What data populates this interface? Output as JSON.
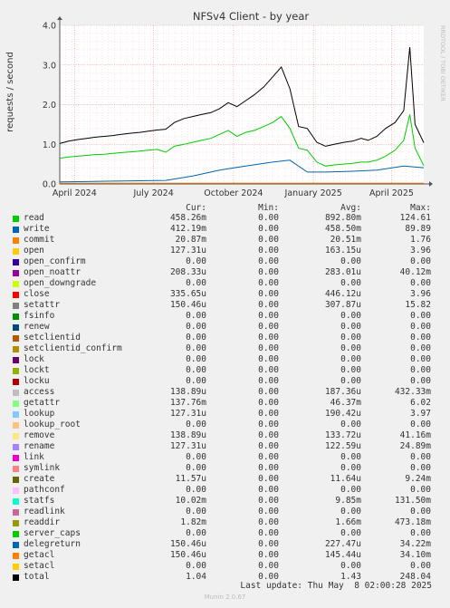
{
  "chart_data": {
    "type": "line",
    "title": "NFSv4 Client - by year",
    "ylabel": "requests / second",
    "xlabel": "",
    "ylim": [
      0,
      4.0
    ],
    "y_ticks": [
      "0.0",
      "1.0",
      "2.0",
      "3.0",
      "4.0"
    ],
    "x_ticks": [
      "April 2024",
      "July 2024",
      "October 2024",
      "January 2025",
      "April 2025"
    ],
    "x_tick_dates": [
      "2024-04-01",
      "2024-07-01",
      "2024-10-01",
      "2025-01-01",
      "2025-04-01"
    ],
    "x_range": [
      "2024-03-15",
      "2025-05-08"
    ],
    "grid": true,
    "watermark": "RRDTOOL / TOBI OETIKER",
    "series": [
      {
        "name": "total",
        "color": "#000000",
        "points": [
          [
            "2024-03-15",
            1.02
          ],
          [
            "2024-03-25",
            1.08
          ],
          [
            "2024-04-05",
            1.12
          ],
          [
            "2024-04-15",
            1.15
          ],
          [
            "2024-04-25",
            1.18
          ],
          [
            "2024-05-05",
            1.2
          ],
          [
            "2024-05-15",
            1.22
          ],
          [
            "2024-05-25",
            1.25
          ],
          [
            "2024-06-05",
            1.28
          ],
          [
            "2024-06-15",
            1.3
          ],
          [
            "2024-06-25",
            1.33
          ],
          [
            "2024-07-05",
            1.36
          ],
          [
            "2024-07-15",
            1.38
          ],
          [
            "2024-07-25",
            1.55
          ],
          [
            "2024-08-05",
            1.65
          ],
          [
            "2024-08-15",
            1.7
          ],
          [
            "2024-08-25",
            1.75
          ],
          [
            "2024-09-05",
            1.8
          ],
          [
            "2024-09-15",
            1.9
          ],
          [
            "2024-09-25",
            2.05
          ],
          [
            "2024-10-05",
            1.95
          ],
          [
            "2024-10-15",
            2.1
          ],
          [
            "2024-10-25",
            2.25
          ],
          [
            "2024-11-05",
            2.45
          ],
          [
            "2024-11-15",
            2.7
          ],
          [
            "2024-11-25",
            2.95
          ],
          [
            "2024-12-05",
            2.4
          ],
          [
            "2024-12-15",
            1.45
          ],
          [
            "2024-12-25",
            1.4
          ],
          [
            "2025-01-05",
            1.05
          ],
          [
            "2025-01-15",
            0.95
          ],
          [
            "2025-01-25",
            1.0
          ],
          [
            "2025-02-05",
            1.05
          ],
          [
            "2025-02-15",
            1.08
          ],
          [
            "2025-02-25",
            1.15
          ],
          [
            "2025-03-05",
            1.1
          ],
          [
            "2025-03-15",
            1.2
          ],
          [
            "2025-03-25",
            1.4
          ],
          [
            "2025-04-05",
            1.55
          ],
          [
            "2025-04-15",
            1.85
          ],
          [
            "2025-04-22",
            3.45
          ],
          [
            "2025-04-28",
            1.5
          ],
          [
            "2025-05-08",
            1.04
          ]
        ]
      },
      {
        "name": "read",
        "color": "#00cc00",
        "points": [
          [
            "2024-03-15",
            0.65
          ],
          [
            "2024-03-25",
            0.68
          ],
          [
            "2024-04-05",
            0.7
          ],
          [
            "2024-04-15",
            0.72
          ],
          [
            "2024-04-25",
            0.74
          ],
          [
            "2024-05-05",
            0.75
          ],
          [
            "2024-05-15",
            0.77
          ],
          [
            "2024-05-25",
            0.79
          ],
          [
            "2024-06-05",
            0.81
          ],
          [
            "2024-06-15",
            0.83
          ],
          [
            "2024-06-25",
            0.85
          ],
          [
            "2024-07-05",
            0.87
          ],
          [
            "2024-07-15",
            0.8
          ],
          [
            "2024-07-25",
            0.95
          ],
          [
            "2024-08-05",
            1.0
          ],
          [
            "2024-08-15",
            1.05
          ],
          [
            "2024-08-25",
            1.1
          ],
          [
            "2024-09-05",
            1.15
          ],
          [
            "2024-09-15",
            1.25
          ],
          [
            "2024-09-25",
            1.35
          ],
          [
            "2024-10-05",
            1.2
          ],
          [
            "2024-10-15",
            1.3
          ],
          [
            "2024-10-25",
            1.35
          ],
          [
            "2024-11-05",
            1.45
          ],
          [
            "2024-11-15",
            1.55
          ],
          [
            "2024-11-25",
            1.7
          ],
          [
            "2024-12-05",
            1.4
          ],
          [
            "2024-12-15",
            0.9
          ],
          [
            "2024-12-25",
            0.85
          ],
          [
            "2025-01-05",
            0.55
          ],
          [
            "2025-01-15",
            0.45
          ],
          [
            "2025-01-25",
            0.48
          ],
          [
            "2025-02-05",
            0.5
          ],
          [
            "2025-02-15",
            0.52
          ],
          [
            "2025-02-25",
            0.55
          ],
          [
            "2025-03-05",
            0.55
          ],
          [
            "2025-03-15",
            0.6
          ],
          [
            "2025-03-25",
            0.7
          ],
          [
            "2025-04-05",
            0.85
          ],
          [
            "2025-04-15",
            1.1
          ],
          [
            "2025-04-22",
            1.75
          ],
          [
            "2025-04-28",
            0.9
          ],
          [
            "2025-05-08",
            0.46
          ]
        ]
      },
      {
        "name": "write",
        "color": "#0066b3",
        "points": [
          [
            "2024-03-15",
            0.05
          ],
          [
            "2024-04-15",
            0.06
          ],
          [
            "2024-05-15",
            0.07
          ],
          [
            "2024-06-15",
            0.08
          ],
          [
            "2024-07-15",
            0.09
          ],
          [
            "2024-08-15",
            0.2
          ],
          [
            "2024-09-15",
            0.35
          ],
          [
            "2024-10-15",
            0.45
          ],
          [
            "2024-11-15",
            0.55
          ],
          [
            "2024-12-05",
            0.6
          ],
          [
            "2024-12-25",
            0.3
          ],
          [
            "2025-01-15",
            0.3
          ],
          [
            "2025-02-15",
            0.32
          ],
          [
            "2025-03-15",
            0.35
          ],
          [
            "2025-04-15",
            0.45
          ],
          [
            "2025-05-08",
            0.41
          ]
        ]
      },
      {
        "name": "commit",
        "color": "#ff8000",
        "points": [
          [
            "2024-03-15",
            0.02
          ],
          [
            "2024-07-15",
            0.02
          ],
          [
            "2024-10-15",
            0.02
          ],
          [
            "2025-01-15",
            0.02
          ],
          [
            "2025-05-08",
            0.02
          ]
        ]
      }
    ],
    "legend_columns": [
      "Cur:",
      "Min:",
      "Avg:",
      "Max:"
    ],
    "legend": [
      {
        "name": "read",
        "color": "#00cc00",
        "cur": "458.26m",
        "min": "0.00",
        "avg": "892.80m",
        "max": "124.61"
      },
      {
        "name": "write",
        "color": "#0066b3",
        "cur": "412.19m",
        "min": "0.00",
        "avg": "458.50m",
        "max": "89.89"
      },
      {
        "name": "commit",
        "color": "#ff8000",
        "cur": "20.87m",
        "min": "0.00",
        "avg": "20.51m",
        "max": "1.76"
      },
      {
        "name": "open",
        "color": "#ffcc00",
        "cur": "127.31u",
        "min": "0.00",
        "avg": "163.15u",
        "max": "3.96"
      },
      {
        "name": "open_confirm",
        "color": "#330099",
        "cur": "0.00",
        "min": "0.00",
        "avg": "0.00",
        "max": "0.00"
      },
      {
        "name": "open_noattr",
        "color": "#990099",
        "cur": "208.33u",
        "min": "0.00",
        "avg": "283.01u",
        "max": "40.12m"
      },
      {
        "name": "open_downgrade",
        "color": "#ccff00",
        "cur": "0.00",
        "min": "0.00",
        "avg": "0.00",
        "max": "0.00"
      },
      {
        "name": "close",
        "color": "#ff0000",
        "cur": "335.65u",
        "min": "0.00",
        "avg": "446.12u",
        "max": "3.96"
      },
      {
        "name": "setattr",
        "color": "#808080",
        "cur": "150.46u",
        "min": "0.00",
        "avg": "307.87u",
        "max": "15.82"
      },
      {
        "name": "fsinfo",
        "color": "#008f00",
        "cur": "0.00",
        "min": "0.00",
        "avg": "0.00",
        "max": "0.00"
      },
      {
        "name": "renew",
        "color": "#00487d",
        "cur": "0.00",
        "min": "0.00",
        "avg": "0.00",
        "max": "0.00"
      },
      {
        "name": "setclientid",
        "color": "#b35a00",
        "cur": "0.00",
        "min": "0.00",
        "avg": "0.00",
        "max": "0.00"
      },
      {
        "name": "setclientid_confirm",
        "color": "#b38f00",
        "cur": "0.00",
        "min": "0.00",
        "avg": "0.00",
        "max": "0.00"
      },
      {
        "name": "lock",
        "color": "#6b006b",
        "cur": "0.00",
        "min": "0.00",
        "avg": "0.00",
        "max": "0.00"
      },
      {
        "name": "lockt",
        "color": "#8fb300",
        "cur": "0.00",
        "min": "0.00",
        "avg": "0.00",
        "max": "0.00"
      },
      {
        "name": "locku",
        "color": "#b30000",
        "cur": "0.00",
        "min": "0.00",
        "avg": "0.00",
        "max": "0.00"
      },
      {
        "name": "access",
        "color": "#bebebe",
        "cur": "138.89u",
        "min": "0.00",
        "avg": "187.36u",
        "max": "432.33m"
      },
      {
        "name": "getattr",
        "color": "#80ff80",
        "cur": "137.76m",
        "min": "0.00",
        "avg": "46.37m",
        "max": "6.02"
      },
      {
        "name": "lookup",
        "color": "#80c9ff",
        "cur": "127.31u",
        "min": "0.00",
        "avg": "190.42u",
        "max": "3.97"
      },
      {
        "name": "lookup_root",
        "color": "#ffc080",
        "cur": "0.00",
        "min": "0.00",
        "avg": "0.00",
        "max": "0.00"
      },
      {
        "name": "remove",
        "color": "#ffe680",
        "cur": "138.89u",
        "min": "0.00",
        "avg": "133.72u",
        "max": "41.16m"
      },
      {
        "name": "rename",
        "color": "#aa80ff",
        "cur": "127.31u",
        "min": "0.00",
        "avg": "122.59u",
        "max": "24.89m"
      },
      {
        "name": "link",
        "color": "#ee00cc",
        "cur": "0.00",
        "min": "0.00",
        "avg": "0.00",
        "max": "0.00"
      },
      {
        "name": "symlink",
        "color": "#ff8080",
        "cur": "0.00",
        "min": "0.00",
        "avg": "0.00",
        "max": "0.00"
      },
      {
        "name": "create",
        "color": "#666600",
        "cur": "11.57u",
        "min": "0.00",
        "avg": "11.64u",
        "max": "9.24m"
      },
      {
        "name": "pathconf",
        "color": "#ffbfff",
        "cur": "0.00",
        "min": "0.00",
        "avg": "0.00",
        "max": "0.00"
      },
      {
        "name": "statfs",
        "color": "#00ffcc",
        "cur": "10.02m",
        "min": "0.00",
        "avg": "9.85m",
        "max": "131.50m"
      },
      {
        "name": "readlink",
        "color": "#cc6699",
        "cur": "0.00",
        "min": "0.00",
        "avg": "0.00",
        "max": "0.00"
      },
      {
        "name": "readdir",
        "color": "#999900",
        "cur": "1.82m",
        "min": "0.00",
        "avg": "1.66m",
        "max": "473.18m"
      },
      {
        "name": "server_caps",
        "color": "#00cc00",
        "cur": "0.00",
        "min": "0.00",
        "avg": "0.00",
        "max": "0.00"
      },
      {
        "name": "delegreturn",
        "color": "#0066b3",
        "cur": "150.46u",
        "min": "0.00",
        "avg": "227.47u",
        "max": "34.22m"
      },
      {
        "name": "getacl",
        "color": "#ff8000",
        "cur": "150.46u",
        "min": "0.00",
        "avg": "145.44u",
        "max": "34.10m"
      },
      {
        "name": "setacl",
        "color": "#ffcc00",
        "cur": "0.00",
        "min": "0.00",
        "avg": "0.00",
        "max": "0.00"
      },
      {
        "name": "total",
        "color": "#000000",
        "cur": "1.04",
        "min": "0.00",
        "avg": "1.43",
        "max": "248.04"
      }
    ],
    "last_update": "Last update: Thu May  8 02:00:28 2025",
    "footer": "Munin 2.0.67"
  }
}
